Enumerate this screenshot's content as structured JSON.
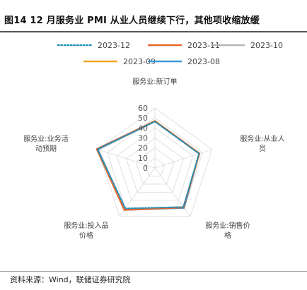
{
  "figure": {
    "title": "图14 12 月服务业 PMI 从业人员继续下行，其他项收缩放缓",
    "source": "资料来源：Wind，联储证券研究院"
  },
  "chart_data": {
    "type": "radar",
    "axes": [
      "服务业:新订单",
      "服务业:从业人员",
      "服务业:销售价格",
      "服务业:投入品价格",
      "服务业:业务活动预期"
    ],
    "axis_label_lines": [
      [
        "服务业:新订单"
      ],
      [
        "服务业:从业人",
        "员"
      ],
      [
        "服务业:销售价",
        "格"
      ],
      [
        "服务业:投入品",
        "价格"
      ],
      [
        "服务业:业务活",
        "动预期"
      ]
    ],
    "ticks": [
      0,
      10,
      20,
      30,
      40,
      50,
      60
    ],
    "range": [
      0,
      60
    ],
    "grid": true,
    "legend_position": "top",
    "series": [
      {
        "name": "2023-12",
        "color": "#1f8fb8",
        "dash": "dotted",
        "values": [
          46.4,
          46.3,
          48.4,
          50.1,
          60.4
        ]
      },
      {
        "name": "2023-11",
        "color": "#e8662c",
        "dash": "solid",
        "values": [
          46.9,
          46.7,
          48.9,
          52.0,
          61.1
        ]
      },
      {
        "name": "2023-10",
        "color": "#b3b3b3",
        "dash": "solid",
        "values": [
          46.5,
          46.6,
          48.3,
          50.8,
          59.4
        ]
      },
      {
        "name": "2023-09",
        "color": "#f5a623",
        "dash": "solid",
        "values": [
          47.0,
          46.8,
          48.6,
          51.5,
          60.0
        ]
      },
      {
        "name": "2023-08",
        "color": "#3d9ad6",
        "dash": "solid",
        "values": [
          46.7,
          46.5,
          49.5,
          51.9,
          59.6
        ]
      }
    ]
  }
}
